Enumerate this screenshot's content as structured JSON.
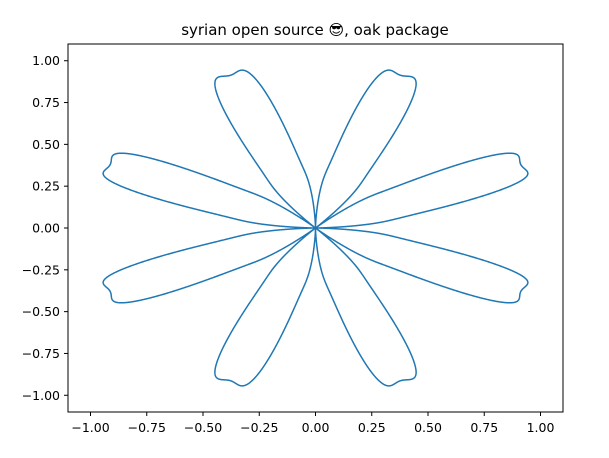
{
  "chart_data": {
    "type": "line",
    "title": "syrian open source 😎, oak package",
    "xlabel": "",
    "ylabel": "",
    "xlim": [
      -1.1,
      1.1
    ],
    "ylim": [
      -1.1,
      1.1
    ],
    "grid": false,
    "legend": "none",
    "x_ticks": [
      -1.0,
      -0.75,
      -0.5,
      -0.25,
      0.0,
      0.25,
      0.5,
      0.75,
      1.0
    ],
    "x_tick_labels": [
      "−1.00",
      "−0.75",
      "−0.50",
      "−0.25",
      "0.00",
      "0.25",
      "0.50",
      "0.75",
      "1.00"
    ],
    "y_ticks": [
      -1.0,
      -0.75,
      -0.5,
      -0.25,
      0.0,
      0.25,
      0.5,
      0.75,
      1.0
    ],
    "y_tick_labels": [
      "−1.00",
      "−0.75",
      "−0.50",
      "−0.25",
      "0.00",
      "0.25",
      "0.50",
      "0.75",
      "1.00"
    ],
    "curve": {
      "kind": "parametric rose",
      "equation": "r(t) = sin(4t)^2 + 0.1*sin(16t)^2 (normalized), x = r cos t, y = r sin t",
      "samples": 8000,
      "color": "#1f77b4"
    }
  }
}
